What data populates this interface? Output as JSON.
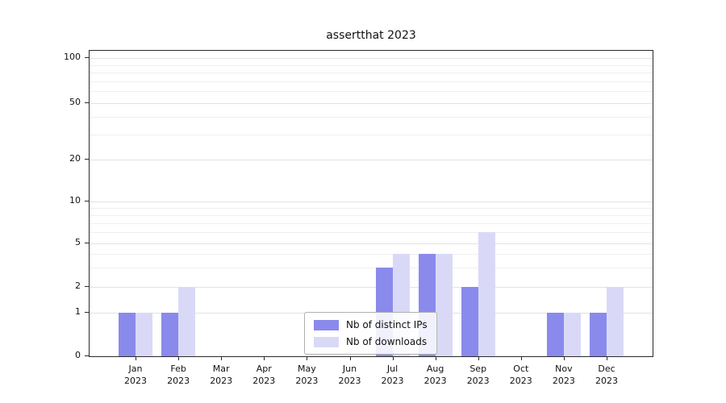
{
  "chart_data": {
    "type": "bar",
    "title": "assertthat 2023",
    "categories": [
      "Jan 2023",
      "Feb 2023",
      "Mar 2023",
      "Apr 2023",
      "May 2023",
      "Jun 2023",
      "Jul 2023",
      "Aug 2023",
      "Sep 2023",
      "Oct 2023",
      "Nov 2023",
      "Dec 2023"
    ],
    "series": [
      {
        "name": "Nb of distinct IPs",
        "color": "#8a8aec",
        "values": [
          1,
          1,
          0,
          0,
          0,
          0,
          3,
          4,
          2,
          0,
          1,
          1
        ]
      },
      {
        "name": "Nb of downloads",
        "color": "#d9d9f7",
        "values": [
          1,
          2,
          0,
          0,
          0,
          0,
          4,
          4,
          6,
          0,
          1,
          2
        ]
      }
    ],
    "yscale": "symlog",
    "yticks": [
      0,
      1,
      2,
      5,
      10,
      20,
      50,
      100
    ],
    "ylim": [
      0,
      100
    ],
    "grid": true,
    "legend_position": "lower center"
  }
}
